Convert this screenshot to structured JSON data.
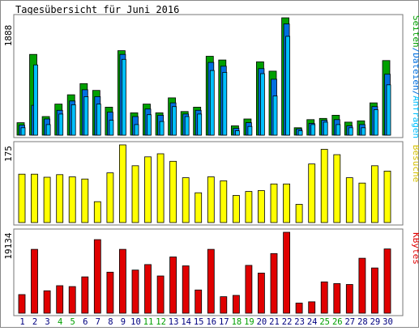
{
  "title": "Tagesübersicht für Juni 2016",
  "colors": {
    "seiten": "#00A000",
    "dateien": "#0070E0",
    "anfragen": "#00C0FF",
    "besuche": "#FFFF00",
    "kbytes": "#E00000",
    "weekend": "#00A000",
    "weekday": "#000080",
    "bar_outline": "#000000",
    "frame": "#555555"
  },
  "chart_data": [
    {
      "type": "bar",
      "panel": "seiten-dateien-anfragen",
      "legend": [
        "Seiten",
        "/",
        "Dateien",
        "/",
        "Anfragen"
      ],
      "ymax_label": "1888",
      "ylim": [
        0,
        1888
      ],
      "categories": [
        "1",
        "2",
        "3",
        "4",
        "5",
        "6",
        "7",
        "8",
        "9",
        "10",
        "11",
        "12",
        "13",
        "14",
        "15",
        "16",
        "17",
        "18",
        "19",
        "20",
        "21",
        "22",
        "23",
        "24",
        "25",
        "26",
        "27",
        "28",
        "29",
        "30"
      ],
      "series": [
        {
          "name": "Seiten",
          "values": [
            200,
            1300,
            300,
            500,
            650,
            830,
            720,
            450,
            1360,
            360,
            500,
            360,
            600,
            380,
            450,
            1270,
            1210,
            150,
            260,
            1180,
            1030,
            1888,
            120,
            250,
            270,
            320,
            210,
            230,
            520,
            1200
          ]
        },
        {
          "name": "Dateien",
          "values": [
            160,
            480,
            260,
            400,
            550,
            730,
            620,
            370,
            1300,
            300,
            420,
            320,
            520,
            340,
            400,
            1170,
            1110,
            110,
            200,
            1070,
            900,
            1790,
            100,
            190,
            240,
            250,
            150,
            170,
            460,
            980
          ]
        },
        {
          "name": "Anfragen",
          "values": [
            120,
            1130,
            170,
            340,
            490,
            620,
            500,
            240,
            1220,
            170,
            330,
            220,
            460,
            300,
            340,
            1040,
            1010,
            70,
            140,
            990,
            630,
            1590,
            70,
            170,
            210,
            170,
            120,
            120,
            410,
            810
          ]
        }
      ]
    },
    {
      "type": "bar",
      "panel": "besuche",
      "legend": [
        "Besuche"
      ],
      "ymax_label": "175",
      "ylim": [
        0,
        175
      ],
      "categories": [
        "1",
        "2",
        "3",
        "4",
        "5",
        "6",
        "7",
        "8",
        "9",
        "10",
        "11",
        "12",
        "13",
        "14",
        "15",
        "16",
        "17",
        "18",
        "19",
        "20",
        "21",
        "22",
        "23",
        "24",
        "25",
        "26",
        "27",
        "28",
        "29",
        "30"
      ],
      "series": [
        {
          "name": "Besuche",
          "values": [
            109,
            109,
            102,
            108,
            103,
            98,
            47,
            112,
            175,
            128,
            148,
            155,
            138,
            101,
            67,
            103,
            94,
            61,
            70,
            72,
            87,
            87,
            41,
            132,
            165,
            153,
            101,
            89,
            128,
            116
          ]
        }
      ]
    },
    {
      "type": "bar",
      "panel": "kbytes",
      "legend": [
        "KBytes"
      ],
      "ymax_label": "19134",
      "ylim": [
        0,
        19134
      ],
      "categories": [
        "1",
        "2",
        "3",
        "4",
        "5",
        "6",
        "7",
        "8",
        "9",
        "10",
        "11",
        "12",
        "13",
        "14",
        "15",
        "16",
        "17",
        "18",
        "19",
        "20",
        "21",
        "22",
        "23",
        "24",
        "25",
        "26",
        "27",
        "28",
        "29",
        "30"
      ],
      "series": [
        {
          "name": "KBytes",
          "values": [
            4400,
            15100,
            5300,
            6500,
            6300,
            8600,
            17400,
            9700,
            15100,
            10200,
            11500,
            8800,
            13300,
            11200,
            5500,
            15100,
            3900,
            4200,
            11300,
            9500,
            14100,
            19134,
            2400,
            2700,
            7400,
            7000,
            6800,
            13000,
            10700,
            15200
          ]
        }
      ]
    }
  ],
  "x_labels": [
    "1",
    "2",
    "3",
    "4",
    "5",
    "6",
    "7",
    "8",
    "9",
    "10",
    "11",
    "12",
    "13",
    "14",
    "15",
    "16",
    "17",
    "18",
    "19",
    "20",
    "21",
    "22",
    "23",
    "24",
    "25",
    "26",
    "27",
    "28",
    "29",
    "30"
  ],
  "weekend_days": [
    "4",
    "5",
    "11",
    "12",
    "18",
    "19",
    "25",
    "26"
  ]
}
